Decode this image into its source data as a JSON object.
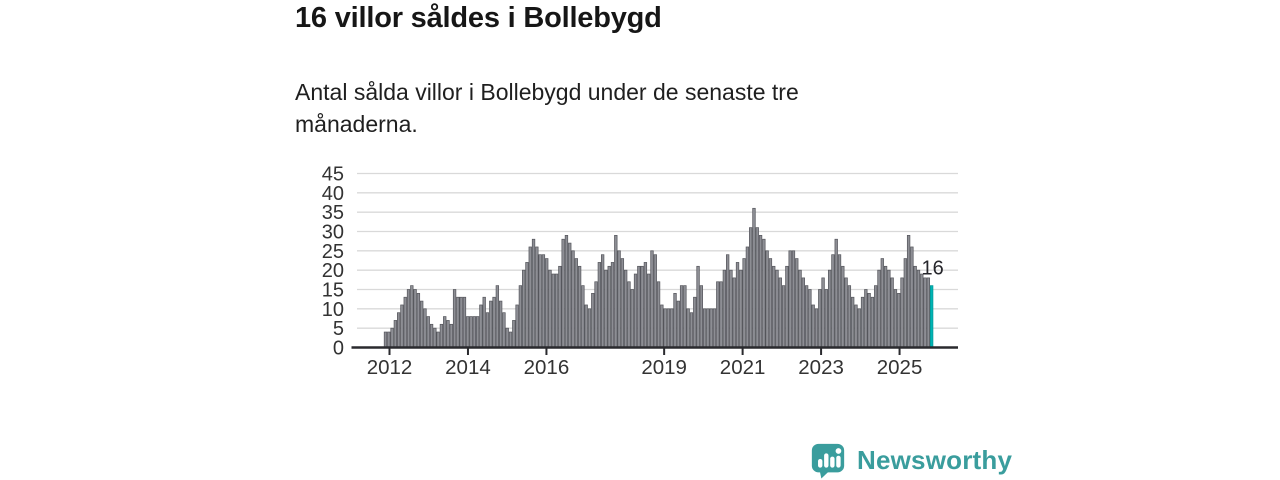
{
  "title": "16 villor såldes i Bollebygd",
  "subtitle": "Antal sålda villor i Bollebygd under de senaste tre månaderna.",
  "footer": {
    "brand": "Newsworthy",
    "logo_icon": "newsworthy-bar-chart-bubble-icon"
  },
  "colors": {
    "title_text": "#161616",
    "body_text": "#1f1f1f",
    "axis_text": "#333333",
    "annotation_text": "#26262b",
    "grid": "#d9d9d9",
    "axis": "#2a2a2e",
    "bar_fill": "#8d8e94",
    "bar_stroke": "#54555b",
    "highlight": "#00b4b4",
    "highlight_stroke": "#009494",
    "brand_teal": "#3a9d9d"
  },
  "chart_data": {
    "type": "bar",
    "title": "16 villor såldes i Bollebygd",
    "xlabel": "",
    "ylabel": "",
    "x_start": "2012-01",
    "x_end": "2025-11",
    "x_tick_labels": [
      "2012",
      "2014",
      "2016",
      "2019",
      "2021",
      "2023",
      "2025"
    ],
    "x_tick_years": [
      2012,
      2014,
      2016,
      2019,
      2021,
      2023,
      2025
    ],
    "y_ticks": [
      0,
      5,
      10,
      15,
      20,
      25,
      30,
      35,
      40,
      45
    ],
    "ylim": [
      0,
      45
    ],
    "grid": true,
    "legend": false,
    "series": [
      {
        "name": "Antal sålda villor",
        "values": [
          4,
          4,
          5,
          7,
          9,
          11,
          13,
          15,
          16,
          15,
          14,
          12,
          10,
          8,
          6,
          5,
          4,
          6,
          8,
          7,
          6,
          15,
          13,
          13,
          13,
          8,
          8,
          8,
          8,
          11,
          13,
          9,
          12,
          13,
          16,
          12,
          9,
          5,
          4,
          7,
          11,
          16,
          20,
          22,
          26,
          28,
          26,
          24,
          24,
          23,
          20,
          19,
          19,
          21,
          28,
          29,
          27,
          25,
          23,
          21,
          16,
          11,
          10,
          14,
          17,
          22,
          24,
          20,
          21,
          22,
          29,
          25,
          23,
          20,
          17,
          15,
          19,
          21,
          21,
          22,
          19,
          25,
          24,
          17,
          11,
          10,
          10,
          10,
          14,
          12,
          16,
          16,
          10,
          9,
          13,
          21,
          16,
          10,
          10,
          10,
          10,
          17,
          17,
          20,
          24,
          20,
          18,
          22,
          20,
          23,
          26,
          31,
          36,
          31,
          29,
          28,
          25,
          23,
          21,
          20,
          18,
          16,
          21,
          25,
          25,
          23,
          20,
          18,
          16,
          15,
          11,
          10,
          15,
          18,
          15,
          20,
          24,
          28,
          24,
          21,
          18,
          16,
          13,
          11,
          10,
          13,
          15,
          14,
          13,
          16,
          20,
          23,
          21,
          20,
          18,
          15,
          14,
          18,
          23,
          29,
          26,
          21,
          20,
          19,
          18,
          18,
          16
        ]
      }
    ],
    "highlight_last": {
      "index": 166,
      "value": 16,
      "label": "16"
    }
  }
}
